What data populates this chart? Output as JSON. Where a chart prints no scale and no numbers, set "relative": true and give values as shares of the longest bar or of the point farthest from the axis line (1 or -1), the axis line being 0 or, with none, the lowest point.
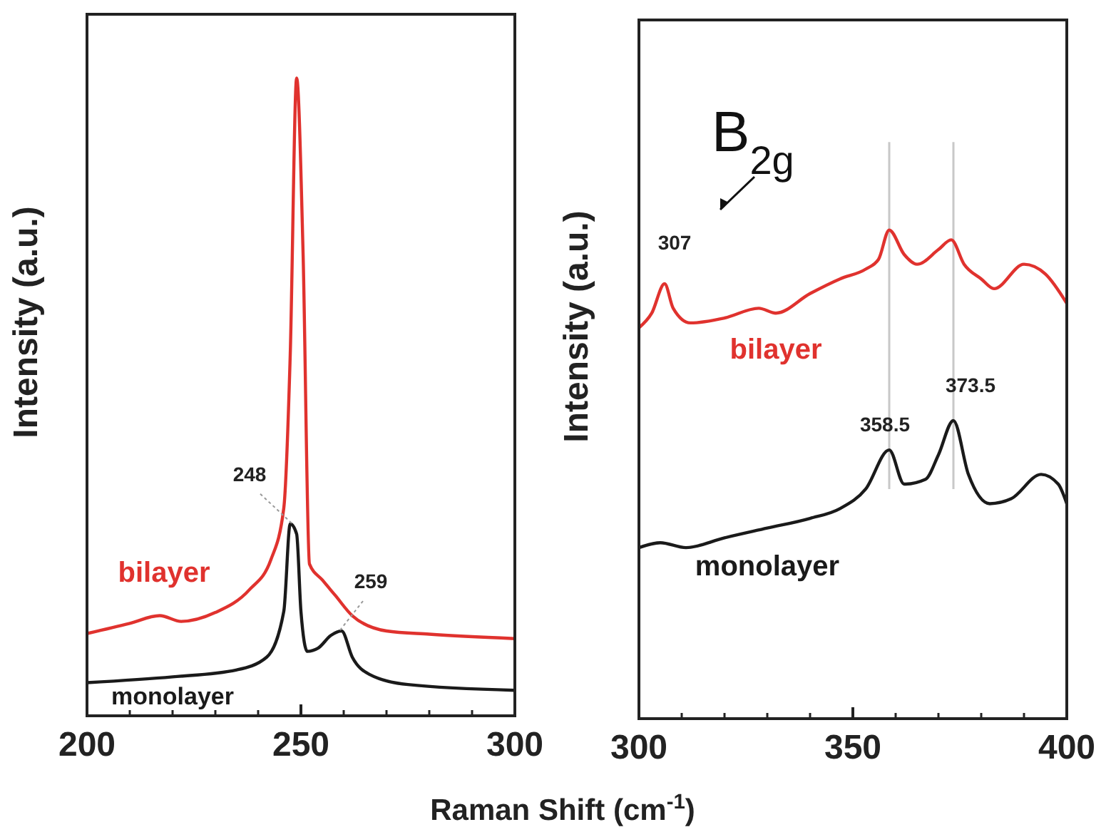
{
  "chart_data": [
    {
      "type": "line",
      "ylabel": "Intensity (a.u.)",
      "relative": true,
      "xlim": [
        200,
        300
      ],
      "xticks": [
        200,
        250,
        300
      ],
      "tick_labels": "x",
      "series": [
        {
          "name": "bilayer",
          "color": "#e0322e",
          "x": [
            200,
            210,
            217,
            222,
            230,
            238,
            243,
            246,
            247.5,
            249,
            250.5,
            252,
            255,
            258,
            262,
            270,
            280,
            300
          ],
          "values": [
            0.129,
            0.145,
            0.157,
            0.148,
            0.162,
            0.198,
            0.245,
            0.326,
            0.566,
            1.0,
            0.726,
            0.238,
            0.213,
            0.189,
            0.157,
            0.133,
            0.128,
            0.121
          ]
        },
        {
          "name": "monolayer",
          "color": "#1a1a1a",
          "x": [
            200,
            220,
            235,
            242,
            246,
            247.5,
            249,
            250,
            251.5,
            254,
            257,
            259.5,
            262,
            266,
            275,
            300
          ],
          "values": [
            0.052,
            0.061,
            0.072,
            0.092,
            0.164,
            0.301,
            0.285,
            0.164,
            0.101,
            0.106,
            0.126,
            0.133,
            0.092,
            0.065,
            0.049,
            0.04
          ]
        }
      ],
      "annotations": [
        {
          "text": "248",
          "x": 248,
          "y": 0.301
        },
        {
          "text": "259",
          "x": 259,
          "y": 0.133
        }
      ]
    },
    {
      "type": "line",
      "ylabel": "Intensity (a.u.)",
      "xlabel": "Raman Shift (cm$^{-1}$)",
      "relative": true,
      "xlim": [
        300,
        400
      ],
      "xticks": [
        300,
        350,
        400
      ],
      "tick_labels": "x",
      "series": [
        {
          "name": "bilayer",
          "color": "#e0322e",
          "x": [
            300,
            303,
            306,
            308,
            312,
            320,
            328,
            332,
            340,
            347,
            353,
            356,
            358.5,
            362,
            365,
            370,
            373,
            376,
            380,
            383,
            390,
            395,
            400
          ],
          "values": [
            0.8,
            0.83,
            0.89,
            0.84,
            0.81,
            0.82,
            0.84,
            0.83,
            0.87,
            0.9,
            0.92,
            0.94,
            1.0,
            0.95,
            0.93,
            0.96,
            0.98,
            0.93,
            0.9,
            0.88,
            0.93,
            0.91,
            0.85
          ]
        },
        {
          "name": "monolayer",
          "color": "#1a1a1a",
          "x": [
            300,
            305,
            311,
            320,
            330,
            340,
            347,
            353,
            358.5,
            362,
            367,
            370,
            373.5,
            377,
            382,
            387,
            394,
            398,
            400
          ],
          "values": [
            0.35,
            0.36,
            0.35,
            0.37,
            0.39,
            0.41,
            0.43,
            0.47,
            0.55,
            0.48,
            0.49,
            0.54,
            0.61,
            0.5,
            0.44,
            0.45,
            0.5,
            0.48,
            0.44
          ]
        }
      ],
      "ref_lines": [
        {
          "axis": "x",
          "value": 358.5,
          "color": "#c8c8c8"
        },
        {
          "axis": "x",
          "value": 373.5,
          "color": "#c8c8c8"
        }
      ],
      "annotations": [
        "B$_{2g}$",
        {
          "text": "307",
          "x": 307,
          "y": 0.89
        },
        {
          "text": "358.5",
          "x": 358.5,
          "y": 0.55
        },
        {
          "text": "373.5",
          "x": 373.5,
          "y": 0.61
        }
      ]
    }
  ]
}
